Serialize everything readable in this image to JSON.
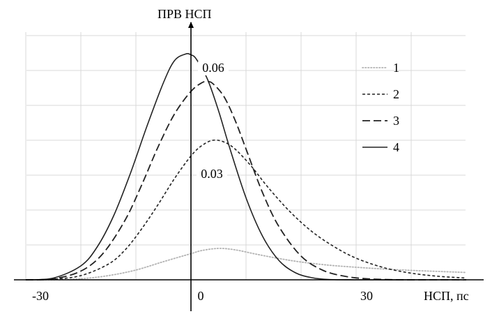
{
  "chart_data": {
    "type": "line",
    "ylabel": "ПРВ НСП",
    "xlabel": "НСП, пс",
    "xlim": [
      -38,
      50
    ],
    "ylim": [
      0,
      0.07
    ],
    "grid": true,
    "legend_position": "top-right",
    "x_tick_labels": [
      {
        "value": -30,
        "text": "-30"
      },
      {
        "value": 0,
        "text": "0"
      },
      {
        "value": 30,
        "text": "30"
      }
    ],
    "y_tick_labels": [
      {
        "value": 0.06,
        "text": "0.06"
      },
      {
        "value": 0.03,
        "text": "0.03"
      }
    ],
    "series": [
      {
        "name": "1",
        "color": "#b3b3b3",
        "dash": "dotted",
        "x": [
          -30,
          -25,
          -20,
          -15,
          -10,
          -5,
          0,
          2,
          5,
          8,
          12,
          16,
          20,
          25,
          30,
          35,
          40,
          45,
          50
        ],
        "y": [
          0.0,
          0.0,
          0.0003,
          0.0012,
          0.0028,
          0.0052,
          0.0075,
          0.0084,
          0.009,
          0.0086,
          0.0073,
          0.0061,
          0.0051,
          0.0042,
          0.0036,
          0.0031,
          0.0027,
          0.0024,
          0.0021
        ]
      },
      {
        "name": "2",
        "color": "#222222",
        "dash": "short",
        "x": [
          -30,
          -25,
          -20,
          -15,
          -12,
          -9,
          -6,
          -3,
          0,
          2,
          4,
          6,
          8,
          11,
          14,
          18,
          22,
          26,
          30,
          35,
          40,
          45,
          50
        ],
        "y": [
          0.0,
          0.0002,
          0.0012,
          0.0045,
          0.0085,
          0.0145,
          0.0215,
          0.029,
          0.0355,
          0.0385,
          0.04,
          0.0395,
          0.0375,
          0.0325,
          0.0265,
          0.0195,
          0.0138,
          0.0095,
          0.0062,
          0.0035,
          0.0019,
          0.001,
          0.0005
        ]
      },
      {
        "name": "3",
        "color": "#222222",
        "dash": "long",
        "x": [
          -30,
          -25,
          -20,
          -16,
          -12,
          -9,
          -6,
          -3,
          0,
          2,
          3,
          4,
          6,
          8,
          10,
          13,
          16,
          20,
          24,
          28,
          32,
          38,
          45,
          50
        ],
        "y": [
          0.0,
          0.0003,
          0.0025,
          0.0075,
          0.017,
          0.027,
          0.038,
          0.0475,
          0.054,
          0.0565,
          0.0568,
          0.0562,
          0.0525,
          0.0458,
          0.0375,
          0.025,
          0.0152,
          0.0068,
          0.0027,
          0.001,
          0.0003,
          0.0,
          0.0,
          0.0
        ]
      },
      {
        "name": "4",
        "color": "#222222",
        "dash": "solid",
        "x": [
          -30,
          -25,
          -20,
          -17,
          -14,
          -11,
          -8,
          -5,
          -3,
          -1,
          0,
          1,
          3,
          5,
          7,
          10,
          13,
          16,
          19,
          22,
          25,
          30,
          40,
          50
        ],
        "y": [
          0.0,
          0.0005,
          0.004,
          0.0095,
          0.0185,
          0.0305,
          0.044,
          0.0565,
          0.0628,
          0.0647,
          0.0645,
          0.0632,
          0.0575,
          0.0485,
          0.038,
          0.0235,
          0.0125,
          0.0055,
          0.002,
          0.0006,
          0.0001,
          0.0,
          0.0,
          0.0
        ]
      }
    ]
  }
}
